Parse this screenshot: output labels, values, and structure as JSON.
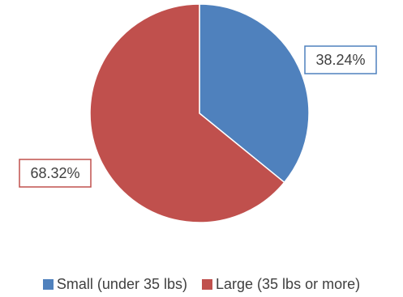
{
  "chart_data": {
    "type": "pie",
    "categories": [
      "Small (under 35 lbs)",
      "Large (35 lbs or more)"
    ],
    "values": [
      38.24,
      68.32
    ],
    "data_labels": [
      "38.24%",
      "68.32%"
    ],
    "colors": [
      "#4f81bd",
      "#c0504d"
    ],
    "legend_position": "bottom",
    "title": ""
  }
}
